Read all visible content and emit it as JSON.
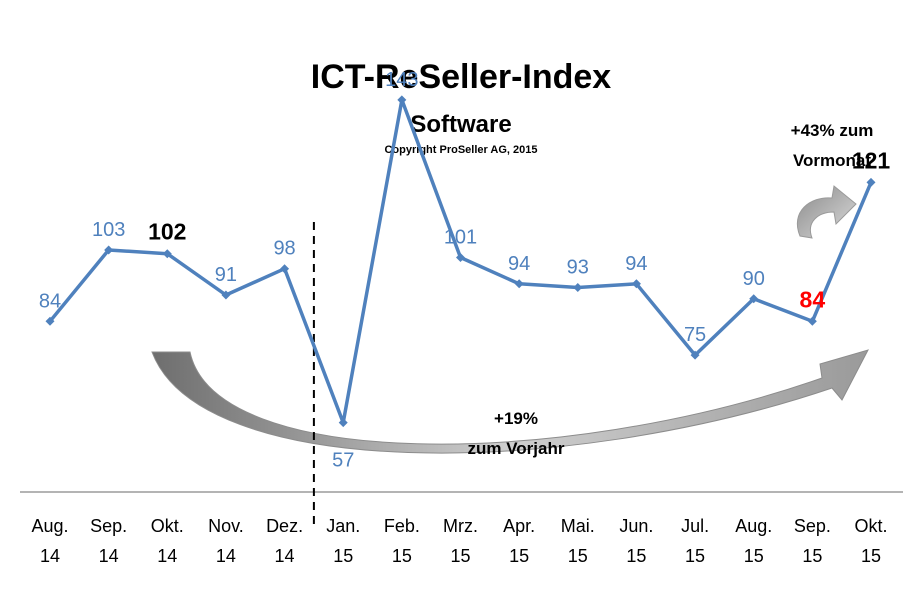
{
  "chart_data": {
    "type": "line",
    "title": "ICT-ReSeller-Index",
    "subtitle": "Software",
    "copyright": "Copyright ProSeller AG, 2015",
    "categories": [
      [
        "Aug.",
        "14"
      ],
      [
        "Sep.",
        "14"
      ],
      [
        "Okt.",
        "14"
      ],
      [
        "Nov.",
        "14"
      ],
      [
        "Dez.",
        "14"
      ],
      [
        "Jan.",
        "15"
      ],
      [
        "Feb.",
        "15"
      ],
      [
        "Mrz.",
        "15"
      ],
      [
        "Apr.",
        "15"
      ],
      [
        "Mai.",
        "15"
      ],
      [
        "Jun.",
        "15"
      ],
      [
        "Jul.",
        "15"
      ],
      [
        "Aug.",
        "15"
      ],
      [
        "Sep.",
        "15"
      ],
      [
        "Okt.",
        "15"
      ]
    ],
    "series": [
      {
        "name": "ICT-ReSeller-Index Software",
        "color": "#4f81bd",
        "values": [
          84,
          103,
          102,
          91,
          98,
          57,
          143,
          101,
          94,
          93,
          94,
          75,
          90,
          84,
          121
        ]
      }
    ],
    "labels": [
      "84",
      "103",
      "102",
      "91",
      "98",
      "57",
      "143",
      "101",
      "94",
      "93",
      "94",
      "75",
      "90",
      "84",
      "121"
    ],
    "highlights": {
      "2": "black",
      "13": "red",
      "14": "black"
    },
    "label_below": [
      5
    ],
    "ylim": [
      30,
      160
    ],
    "divider_after_index": 4,
    "annotations": {
      "month": [
        "+43% zum",
        "Vormonat"
      ],
      "year": [
        "+19%",
        "zum Vorjahr"
      ]
    },
    "xlabel": "",
    "ylabel": "",
    "grid": false
  }
}
